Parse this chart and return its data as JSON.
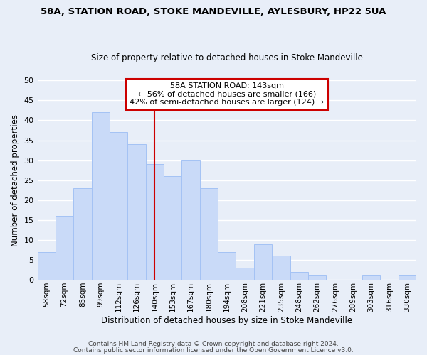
{
  "title1": "58A, STATION ROAD, STOKE MANDEVILLE, AYLESBURY, HP22 5UA",
  "title2": "Size of property relative to detached houses in Stoke Mandeville",
  "xlabel": "Distribution of detached houses by size in Stoke Mandeville",
  "ylabel": "Number of detached properties",
  "bin_labels": [
    "58sqm",
    "72sqm",
    "85sqm",
    "99sqm",
    "112sqm",
    "126sqm",
    "140sqm",
    "153sqm",
    "167sqm",
    "180sqm",
    "194sqm",
    "208sqm",
    "221sqm",
    "235sqm",
    "248sqm",
    "262sqm",
    "276sqm",
    "289sqm",
    "303sqm",
    "316sqm",
    "330sqm"
  ],
  "bar_heights": [
    7,
    16,
    23,
    42,
    37,
    34,
    29,
    26,
    30,
    23,
    7,
    3,
    9,
    6,
    2,
    1,
    0,
    0,
    1,
    0,
    1
  ],
  "bar_color": "#c9daf8",
  "bar_edge_color": "#a4c2f4",
  "reference_line_x_label": "140sqm",
  "reference_line_color": "#cc0000",
  "annotation_title": "58A STATION ROAD: 143sqm",
  "annotation_line1": "← 56% of detached houses are smaller (166)",
  "annotation_line2": "42% of semi-detached houses are larger (124) →",
  "annotation_box_edge_color": "#cc0000",
  "ylim": [
    0,
    50
  ],
  "yticks": [
    0,
    5,
    10,
    15,
    20,
    25,
    30,
    35,
    40,
    45,
    50
  ],
  "footer1": "Contains HM Land Registry data © Crown copyright and database right 2024.",
  "footer2": "Contains public sector information licensed under the Open Government Licence v3.0.",
  "bg_color": "#e8eef8",
  "grid_color": "#ffffff",
  "title1_fontsize": 9.5,
  "title2_fontsize": 8.5,
  "xlabel_fontsize": 8.5,
  "ylabel_fontsize": 8.5,
  "tick_fontsize": 7.5,
  "footer_fontsize": 6.5
}
